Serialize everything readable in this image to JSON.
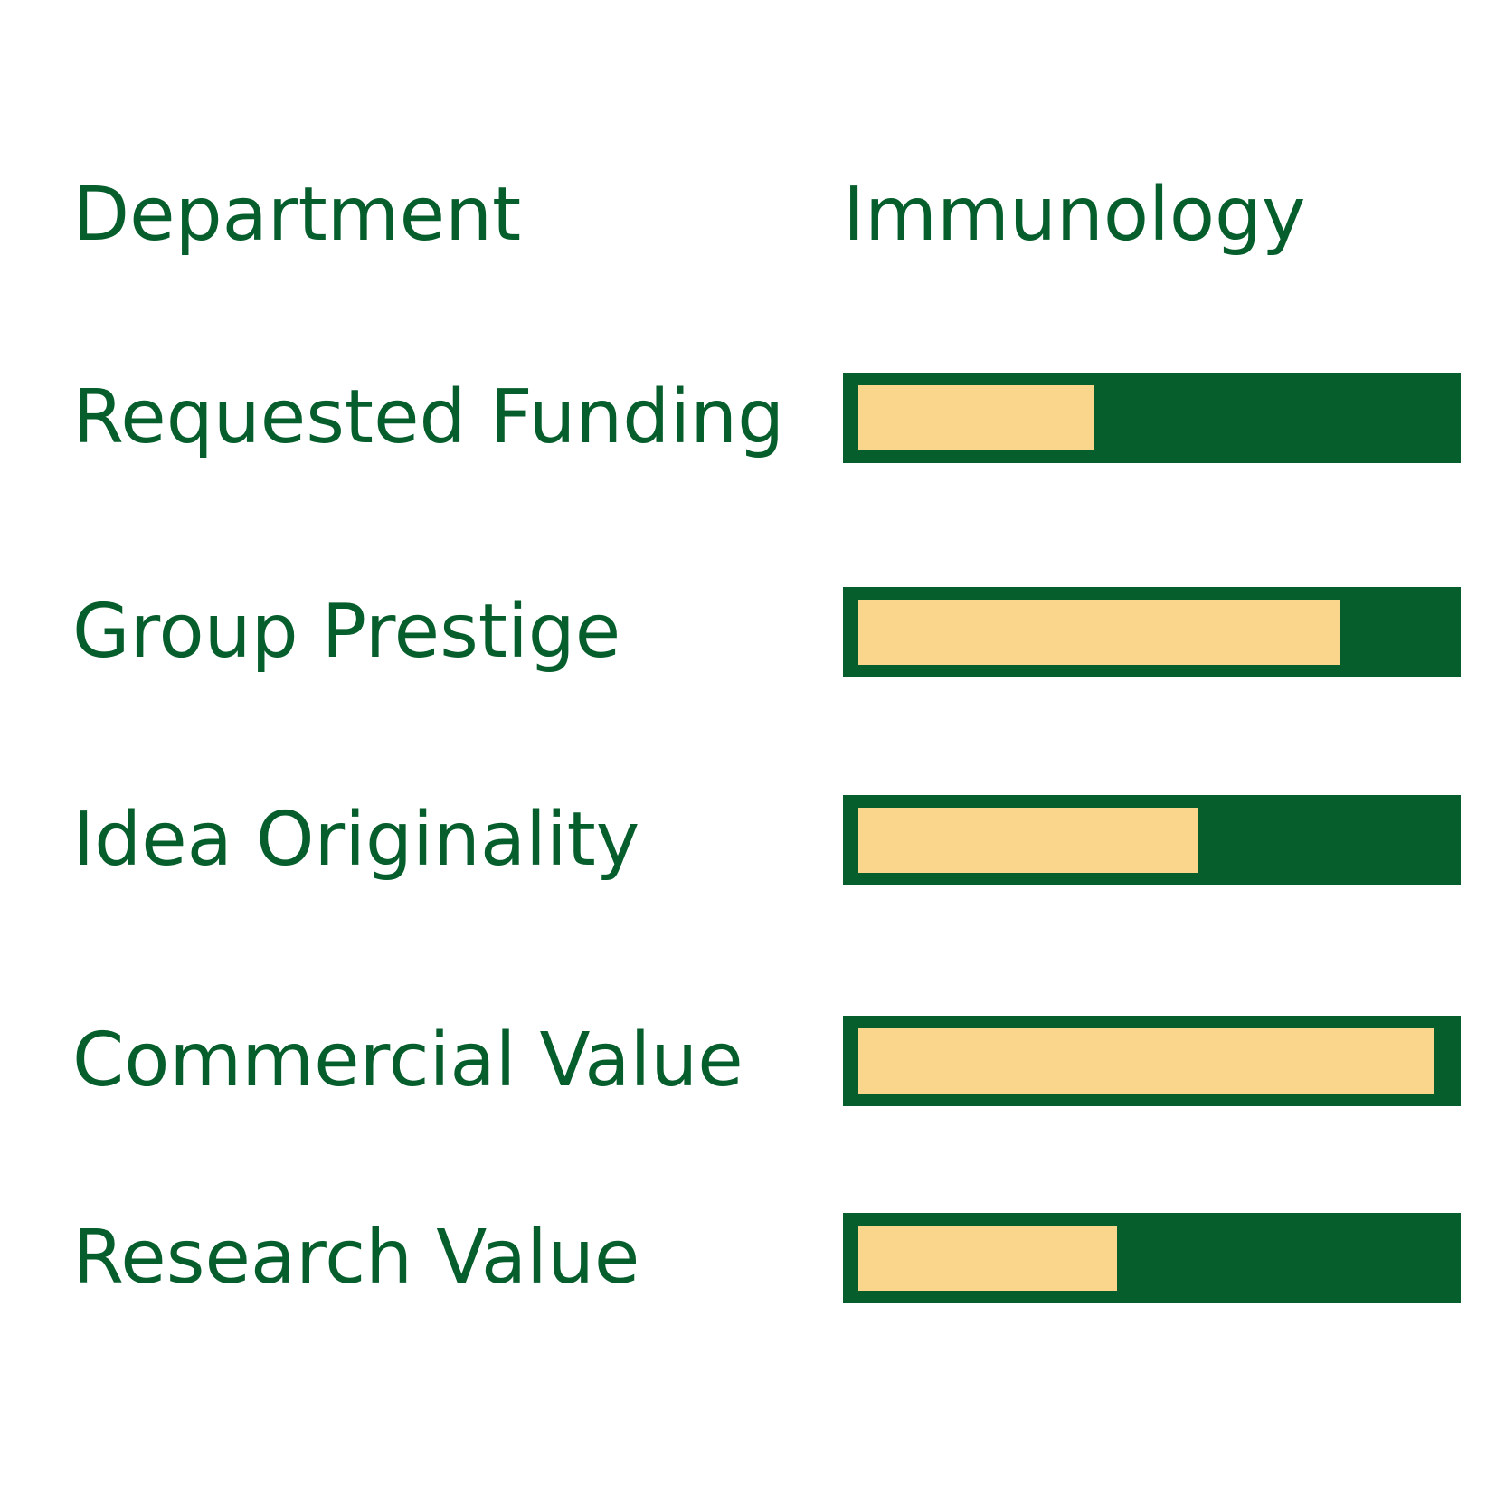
{
  "colors": {
    "accent": "#055E2B",
    "fill": "#FAD68C",
    "background": "#FFFFFF"
  },
  "header": {
    "label": "Department",
    "value": "Immunology"
  },
  "chart_data": {
    "type": "bar",
    "orientation": "horizontal",
    "categories": [
      "Requested Funding",
      "Group Prestige",
      "Idea Originality",
      "Commercial Value",
      "Research Value"
    ],
    "values": [
      0.4,
      0.82,
      0.58,
      0.98,
      0.44
    ],
    "xlim": [
      0,
      1
    ],
    "grid": false,
    "legend": "none"
  }
}
